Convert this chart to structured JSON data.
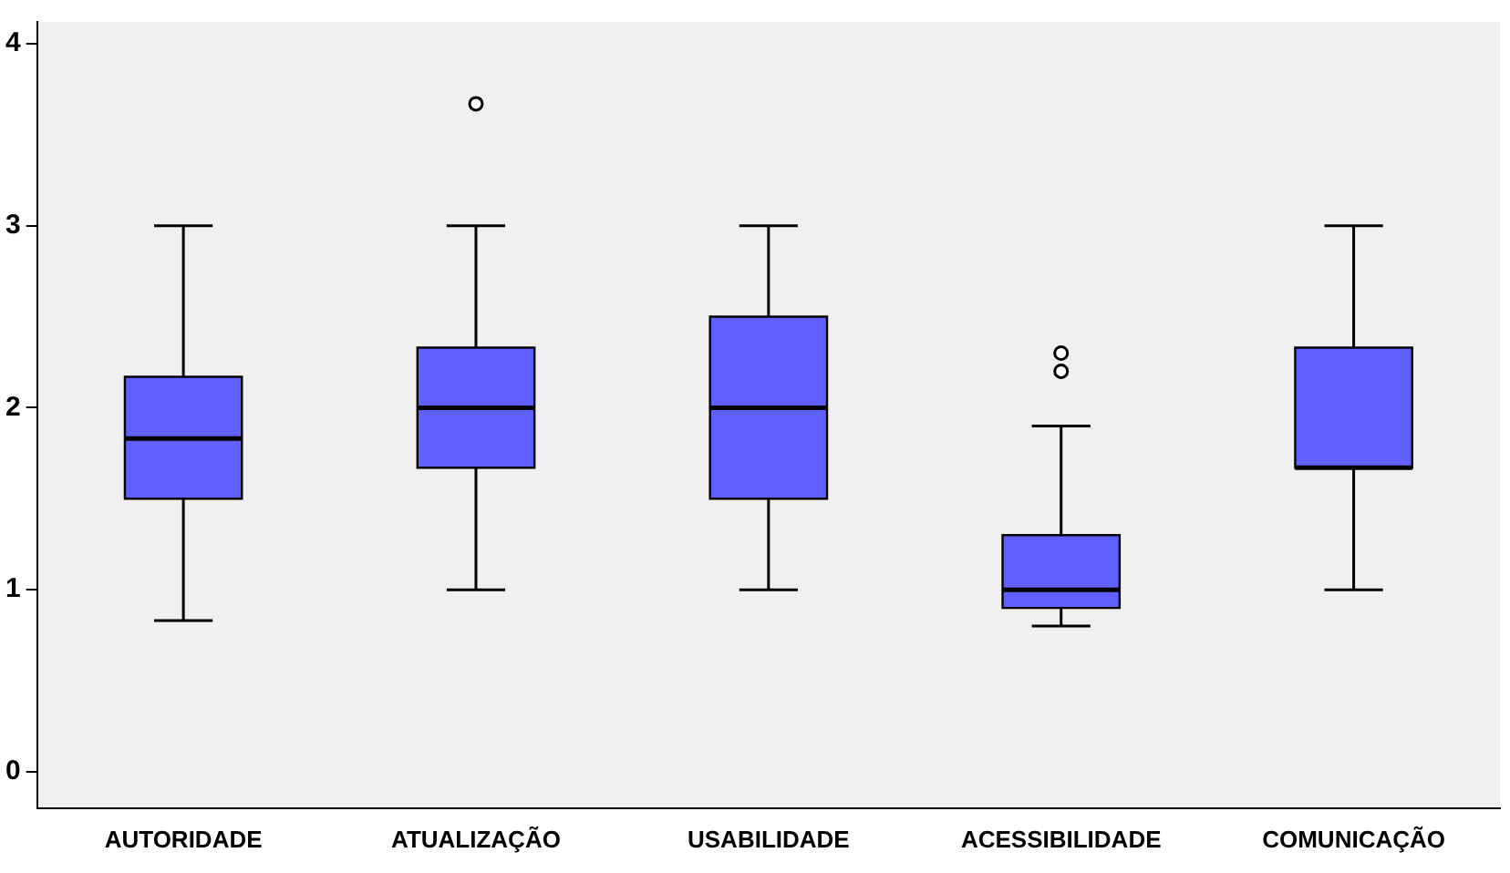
{
  "chart_data": {
    "type": "box",
    "categories": [
      "AUTORIDADE",
      "ATUALIZAÇÃO",
      "USABILIDADE",
      "ACESSIBILIDADE",
      "COMUNICAÇÃO"
    ],
    "color": "#6060ff",
    "boxes": [
      {
        "low": 0.83,
        "q1": 1.5,
        "median": 1.83,
        "q3": 2.17,
        "high": 3
      },
      {
        "low": 1,
        "q1": 1.67,
        "median": 2,
        "q3": 2.33,
        "high": 3,
        "outliers": [
          3.67
        ]
      },
      {
        "low": 1,
        "q1": 1.5,
        "median": 2,
        "q3": 2.5,
        "high": 3
      },
      {
        "low": 0.8,
        "q1": 0.9,
        "median": 1,
        "q3": 1.3,
        "high": 1.9,
        "outliers": [
          2.2,
          2.3
        ]
      },
      {
        "low": 1,
        "q1": 1.67,
        "median": 1.67,
        "q3": 2.33,
        "high": 3
      }
    ],
    "ylim": [
      -0.2,
      4.12
    ],
    "yticks": [
      0,
      1,
      2,
      3,
      4
    ],
    "grid": false,
    "legend": false
  }
}
